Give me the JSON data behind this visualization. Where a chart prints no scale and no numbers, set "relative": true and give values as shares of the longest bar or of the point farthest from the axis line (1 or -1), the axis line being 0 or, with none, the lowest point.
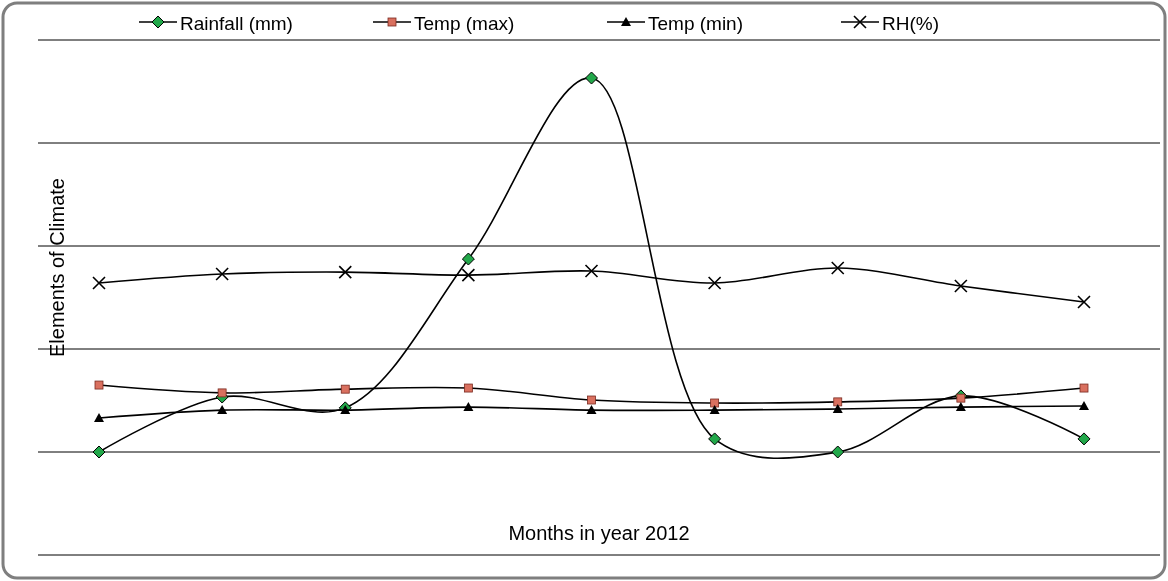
{
  "chart_data": {
    "type": "line",
    "relative": true,
    "xlabel": "Months in year 2012",
    "ylabel": "Elements of Climate",
    "categories": [
      null,
      null,
      null,
      null,
      null,
      null,
      null,
      null,
      null
    ],
    "grid": "y",
    "legend": "top",
    "series": [
      {
        "name": "Rainfall (mm)",
        "color": "#22a84a",
        "marker": "diamond",
        "values": [
          0,
          0.147,
          0.118,
          0.516,
          1,
          0.035,
          0,
          0.15,
          0.035
        ]
      },
      {
        "name": "Temp (max)",
        "color": "#d9705f",
        "marker": "square",
        "values": [
          0.179,
          0.158,
          0.168,
          0.171,
          0.139,
          0.131,
          0.134,
          0.144,
          0.171
        ]
      },
      {
        "name": "Temp (min)",
        "color": "#000000",
        "marker": "triangle",
        "values": [
          0.091,
          0.112,
          0.112,
          0.12,
          0.112,
          0.112,
          0.115,
          0.12,
          0.123
        ]
      },
      {
        "name": "RH(%)",
        "color": "#000000",
        "marker": "cross",
        "values": [
          0.452,
          0.476,
          0.481,
          0.473,
          0.484,
          0.452,
          0.492,
          0.444,
          0.401
        ]
      }
    ]
  }
}
